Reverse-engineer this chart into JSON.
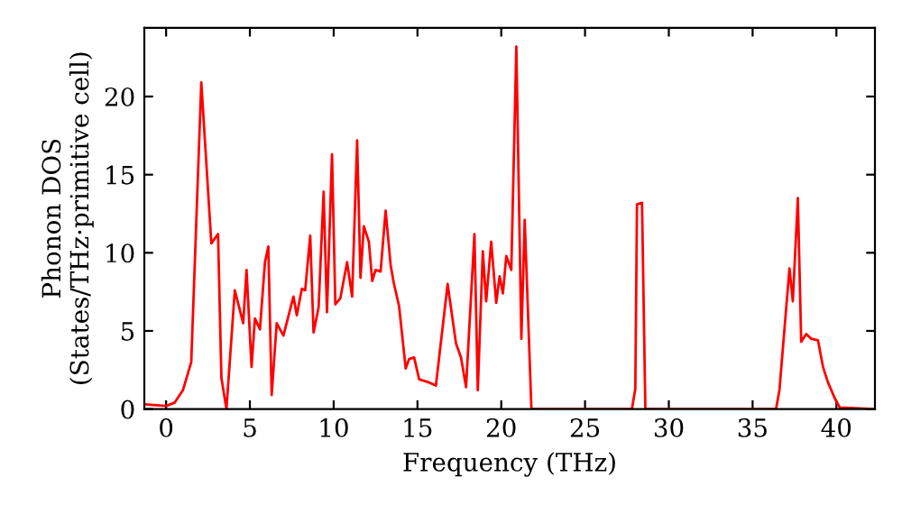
{
  "chart_data": {
    "type": "line",
    "xlabel": "Frequency (THz)",
    "ylabel": "Phonon DOS\n(States/THz·primitive cell)",
    "xlim": [
      -1.3,
      42.3
    ],
    "ylim": [
      0,
      24.4
    ],
    "xticks": [
      0,
      5,
      10,
      15,
      20,
      25,
      30,
      35,
      40
    ],
    "yticks": [
      0,
      5,
      10,
      15,
      20
    ],
    "grid": false,
    "marker": "none",
    "line_style": "solid",
    "series": [
      {
        "color": "#ff0000",
        "x": [
          -1.3,
          0,
          0.5,
          1,
          1.5,
          2.1,
          2.7,
          3.1,
          3.3,
          3.6,
          4.1,
          4.6,
          4.8,
          5.1,
          5.3,
          5.6,
          5.9,
          6.1,
          6.3,
          6.6,
          7.0,
          7.6,
          7.8,
          8.1,
          8.3,
          8.6,
          8.8,
          9.1,
          9.4,
          9.6,
          9.9,
          10.1,
          10.4,
          10.8,
          11.1,
          11.4,
          11.6,
          11.8,
          12.1,
          12.3,
          12.5,
          12.8,
          13.1,
          13.4,
          13.6,
          13.9,
          14.3,
          14.5,
          14.8,
          15.1,
          15.7,
          16.1,
          16.8,
          17.3,
          17.6,
          17.9,
          18.4,
          18.6,
          18.9,
          19.1,
          19.4,
          19.7,
          19.9,
          20.1,
          20.3,
          20.6,
          20.9,
          21.2,
          21.4,
          21.8,
          27.8,
          28.0,
          28.1,
          28.4,
          28.6,
          36.4,
          36.6,
          37.2,
          37.4,
          37.7,
          37.9,
          38.2,
          38.5,
          38.9,
          39.2,
          39.5,
          39.9,
          40.2,
          42.3
        ],
        "values": [
          0.3,
          0.2,
          0.4,
          1.2,
          3,
          20.9,
          10.6,
          11.2,
          2,
          0,
          7.6,
          5.5,
          8.9,
          2.7,
          5.8,
          5.1,
          9.4,
          10.4,
          0.9,
          5.5,
          4.7,
          7.2,
          6.0,
          7.7,
          7.6,
          11.1,
          4.9,
          6.5,
          13.9,
          6.2,
          16.3,
          6.7,
          7.1,
          9.4,
          7.2,
          17.2,
          8.4,
          11.7,
          10.7,
          8.2,
          8.9,
          8.8,
          12.7,
          9.2,
          8.0,
          6.6,
          2.6,
          3.2,
          3.3,
          1.9,
          1.7,
          1.5,
          8.0,
          4.2,
          3.3,
          1.4,
          11.2,
          1.2,
          10.1,
          6.9,
          10.7,
          6.8,
          8.5,
          7.4,
          9.8,
          8.9,
          23.2,
          4.5,
          12.1,
          0,
          0,
          1.3,
          13.1,
          13.2,
          0,
          0,
          1.2,
          9.0,
          6.9,
          13.5,
          4.3,
          4.8,
          4.5,
          4.4,
          2.7,
          1.7,
          0.7,
          0.1,
          0
        ]
      }
    ]
  }
}
